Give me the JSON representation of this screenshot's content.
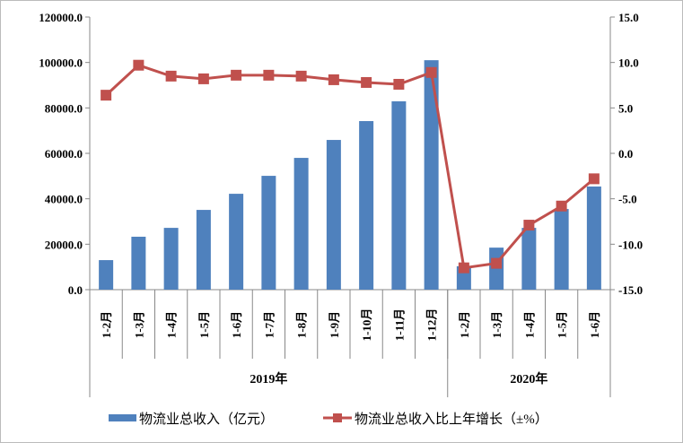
{
  "chart_data": {
    "type": "bar+line",
    "categories": [
      "1-2月",
      "1-3月",
      "1-4月",
      "1-5月",
      "1-6月",
      "1-7月",
      "1-8月",
      "1-9月",
      "1-10月",
      "1-11月",
      "1-12月",
      "1-2月",
      "1-3月",
      "1-4月",
      "1-5月",
      "1-6月"
    ],
    "groups": [
      {
        "label": "2019年",
        "count": 11
      },
      {
        "label": "2020年",
        "count": 5
      }
    ],
    "series": [
      {
        "name": "物流业总收入（亿元）",
        "type": "bar",
        "axis": "left",
        "color": "#4F81BD",
        "values": [
          13000,
          23300,
          27200,
          35100,
          42200,
          50100,
          58000,
          65900,
          74200,
          82900,
          101000,
          10300,
          18500,
          27200,
          35500,
          45400
        ]
      },
      {
        "name": "物流业总收入比上年增长（±%）",
        "type": "line",
        "axis": "right",
        "color": "#C0504D",
        "values": [
          6.4,
          9.7,
          8.5,
          8.2,
          8.6,
          8.6,
          8.5,
          8.1,
          7.8,
          7.6,
          8.9,
          -12.6,
          -12.1,
          -7.9,
          -5.8,
          -2.8
        ]
      }
    ],
    "left_axis": {
      "ylim": [
        0,
        120000
      ],
      "ticks": [
        "0.0",
        "20000.0",
        "40000.0",
        "60000.0",
        "80000.0",
        "100000.0",
        "120000.0"
      ]
    },
    "right_axis": {
      "ylim": [
        -15,
        15
      ],
      "ticks": [
        "-15.0",
        "-10.0",
        "-5.0",
        "0.0",
        "5.0",
        "10.0",
        "15.0"
      ]
    },
    "grid": false,
    "legend_position": "bottom"
  }
}
